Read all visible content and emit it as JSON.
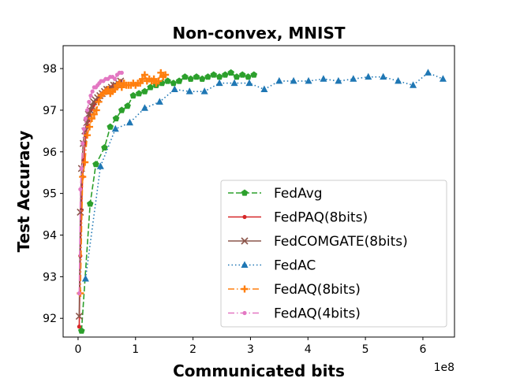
{
  "chart_data": {
    "type": "line",
    "title": "Non-convex, MNIST",
    "xlabel": "Communicated bits",
    "ylabel": "Test Accuracy",
    "x_scale_label": "1e8",
    "x_scale_factor": 100000000,
    "xlim": [
      -2.6,
      65.5
    ],
    "ylim": [
      91.55,
      98.55
    ],
    "xticks": [
      0,
      1,
      2,
      3,
      4,
      5,
      6
    ],
    "yticks": [
      92,
      93,
      94,
      95,
      96,
      97,
      98
    ],
    "grid": false,
    "legend_position": "lower right",
    "series": [
      {
        "name": "FedAvg",
        "color": "#2ca02c",
        "marker": "pentagon",
        "linestyle": "dashed",
        "x": [
          0.6,
          2.1,
          3.1,
          4.6,
          5.6,
          6.6,
          7.6,
          8.6,
          9.6,
          10.6,
          11.6,
          12.6,
          13.6,
          14.6,
          15.6,
          16.6,
          17.6,
          18.6,
          19.6,
          20.6,
          21.6,
          22.6,
          23.6,
          24.6,
          25.6,
          26.6,
          27.6,
          28.6,
          29.6,
          30.6
        ],
        "y": [
          91.7,
          94.75,
          95.7,
          96.1,
          96.6,
          96.8,
          97.0,
          97.1,
          97.35,
          97.4,
          97.45,
          97.55,
          97.6,
          97.65,
          97.7,
          97.65,
          97.7,
          97.8,
          97.75,
          97.8,
          97.75,
          97.8,
          97.85,
          97.8,
          97.85,
          97.9,
          97.8,
          97.85,
          97.8,
          97.85
        ]
      },
      {
        "name": "FedPAQ(8bits)",
        "color": "#d62728",
        "marker": "dot",
        "linestyle": "solid",
        "x": [
          0.2,
          0.4,
          0.6,
          0.8,
          1.0,
          1.2,
          1.4,
          1.6,
          1.8,
          2.0,
          2.2,
          2.4,
          2.6,
          2.8,
          3.0,
          3.3,
          3.6,
          3.9,
          4.2,
          4.6,
          5.0,
          5.4,
          5.8,
          6.2,
          6.6,
          7.0,
          7.4
        ],
        "y": [
          91.8,
          93.5,
          94.6,
          95.4,
          95.8,
          96.2,
          96.4,
          96.6,
          96.75,
          96.9,
          97.0,
          97.05,
          97.1,
          97.15,
          97.2,
          97.25,
          97.3,
          97.35,
          97.4,
          97.45,
          97.5,
          97.5,
          97.55,
          97.6,
          97.6,
          97.65,
          97.7
        ]
      },
      {
        "name": "FedCOMGATE(8bits)",
        "color": "#8c564b",
        "marker": "x",
        "linestyle": "solid",
        "x": [
          0.2,
          0.4,
          0.6,
          0.9,
          1.2,
          1.5,
          1.8,
          2.1,
          2.4,
          2.7,
          3.0,
          3.4,
          3.8,
          4.2,
          4.6,
          5.0,
          5.4,
          5.8,
          6.2,
          6.6,
          7.0,
          7.4
        ],
        "y": [
          92.05,
          94.55,
          95.6,
          96.2,
          96.5,
          96.7,
          96.9,
          97.0,
          97.1,
          97.2,
          97.25,
          97.3,
          97.35,
          97.4,
          97.45,
          97.5,
          97.5,
          97.55,
          97.6,
          97.6,
          97.65,
          97.7
        ]
      },
      {
        "name": "FedAC",
        "color": "#1f77b4",
        "marker": "triangle",
        "linestyle": "dotted",
        "x": [
          1.3,
          3.9,
          6.5,
          9.0,
          11.6,
          14.2,
          16.8,
          19.4,
          22.0,
          24.6,
          27.2,
          29.8,
          32.4,
          35.0,
          37.5,
          40.1,
          42.7,
          45.3,
          47.9,
          50.5,
          53.1,
          55.7,
          58.3,
          60.9,
          63.5
        ],
        "y": [
          92.95,
          95.65,
          96.55,
          96.7,
          97.05,
          97.2,
          97.5,
          97.45,
          97.45,
          97.65,
          97.65,
          97.65,
          97.5,
          97.7,
          97.7,
          97.7,
          97.75,
          97.7,
          97.75,
          97.8,
          97.8,
          97.7,
          97.6,
          97.9,
          97.75
        ]
      },
      {
        "name": "FedAQ(8bits)",
        "color": "#ff7f0e",
        "marker": "plus",
        "linestyle": "dashdot",
        "x": [
          0.4,
          0.8,
          1.2,
          1.6,
          2.0,
          2.4,
          2.8,
          3.2,
          3.6,
          4.0,
          4.4,
          4.8,
          5.2,
          5.6,
          6.0,
          6.4,
          6.8,
          7.2,
          7.6,
          8.0,
          8.4,
          8.8,
          9.2,
          9.6,
          10.0,
          10.4,
          10.8,
          11.2,
          11.6,
          12.0,
          12.4,
          12.8,
          13.2,
          13.6,
          14.0,
          14.4,
          14.8,
          15.2
        ],
        "y": [
          92.6,
          95.4,
          95.75,
          96.4,
          96.6,
          96.8,
          96.9,
          97.0,
          97.2,
          97.35,
          97.4,
          97.45,
          97.5,
          97.4,
          97.45,
          97.5,
          97.6,
          97.65,
          97.55,
          97.65,
          97.6,
          97.6,
          97.6,
          97.65,
          97.6,
          97.65,
          97.65,
          97.75,
          97.85,
          97.7,
          97.75,
          97.7,
          97.75,
          97.65,
          97.7,
          97.9,
          97.8,
          97.85
        ]
      },
      {
        "name": "FedAQ(4bits)",
        "color": "#e377c2",
        "marker": "dot",
        "linestyle": "dashdot",
        "x": [
          0.2,
          0.4,
          0.6,
          0.8,
          1.0,
          1.3,
          1.6,
          1.9,
          2.2,
          2.5,
          2.8,
          3.1,
          3.4,
          3.7,
          4.0,
          4.4,
          4.8,
          5.2,
          5.6,
          6.0,
          6.4,
          6.8,
          7.2,
          7.6
        ],
        "y": [
          92.6,
          95.1,
          95.6,
          96.2,
          96.55,
          96.8,
          97.0,
          97.2,
          97.35,
          97.45,
          97.55,
          97.55,
          97.6,
          97.65,
          97.7,
          97.7,
          97.75,
          97.75,
          97.8,
          97.8,
          97.75,
          97.85,
          97.9,
          97.9
        ]
      }
    ]
  }
}
